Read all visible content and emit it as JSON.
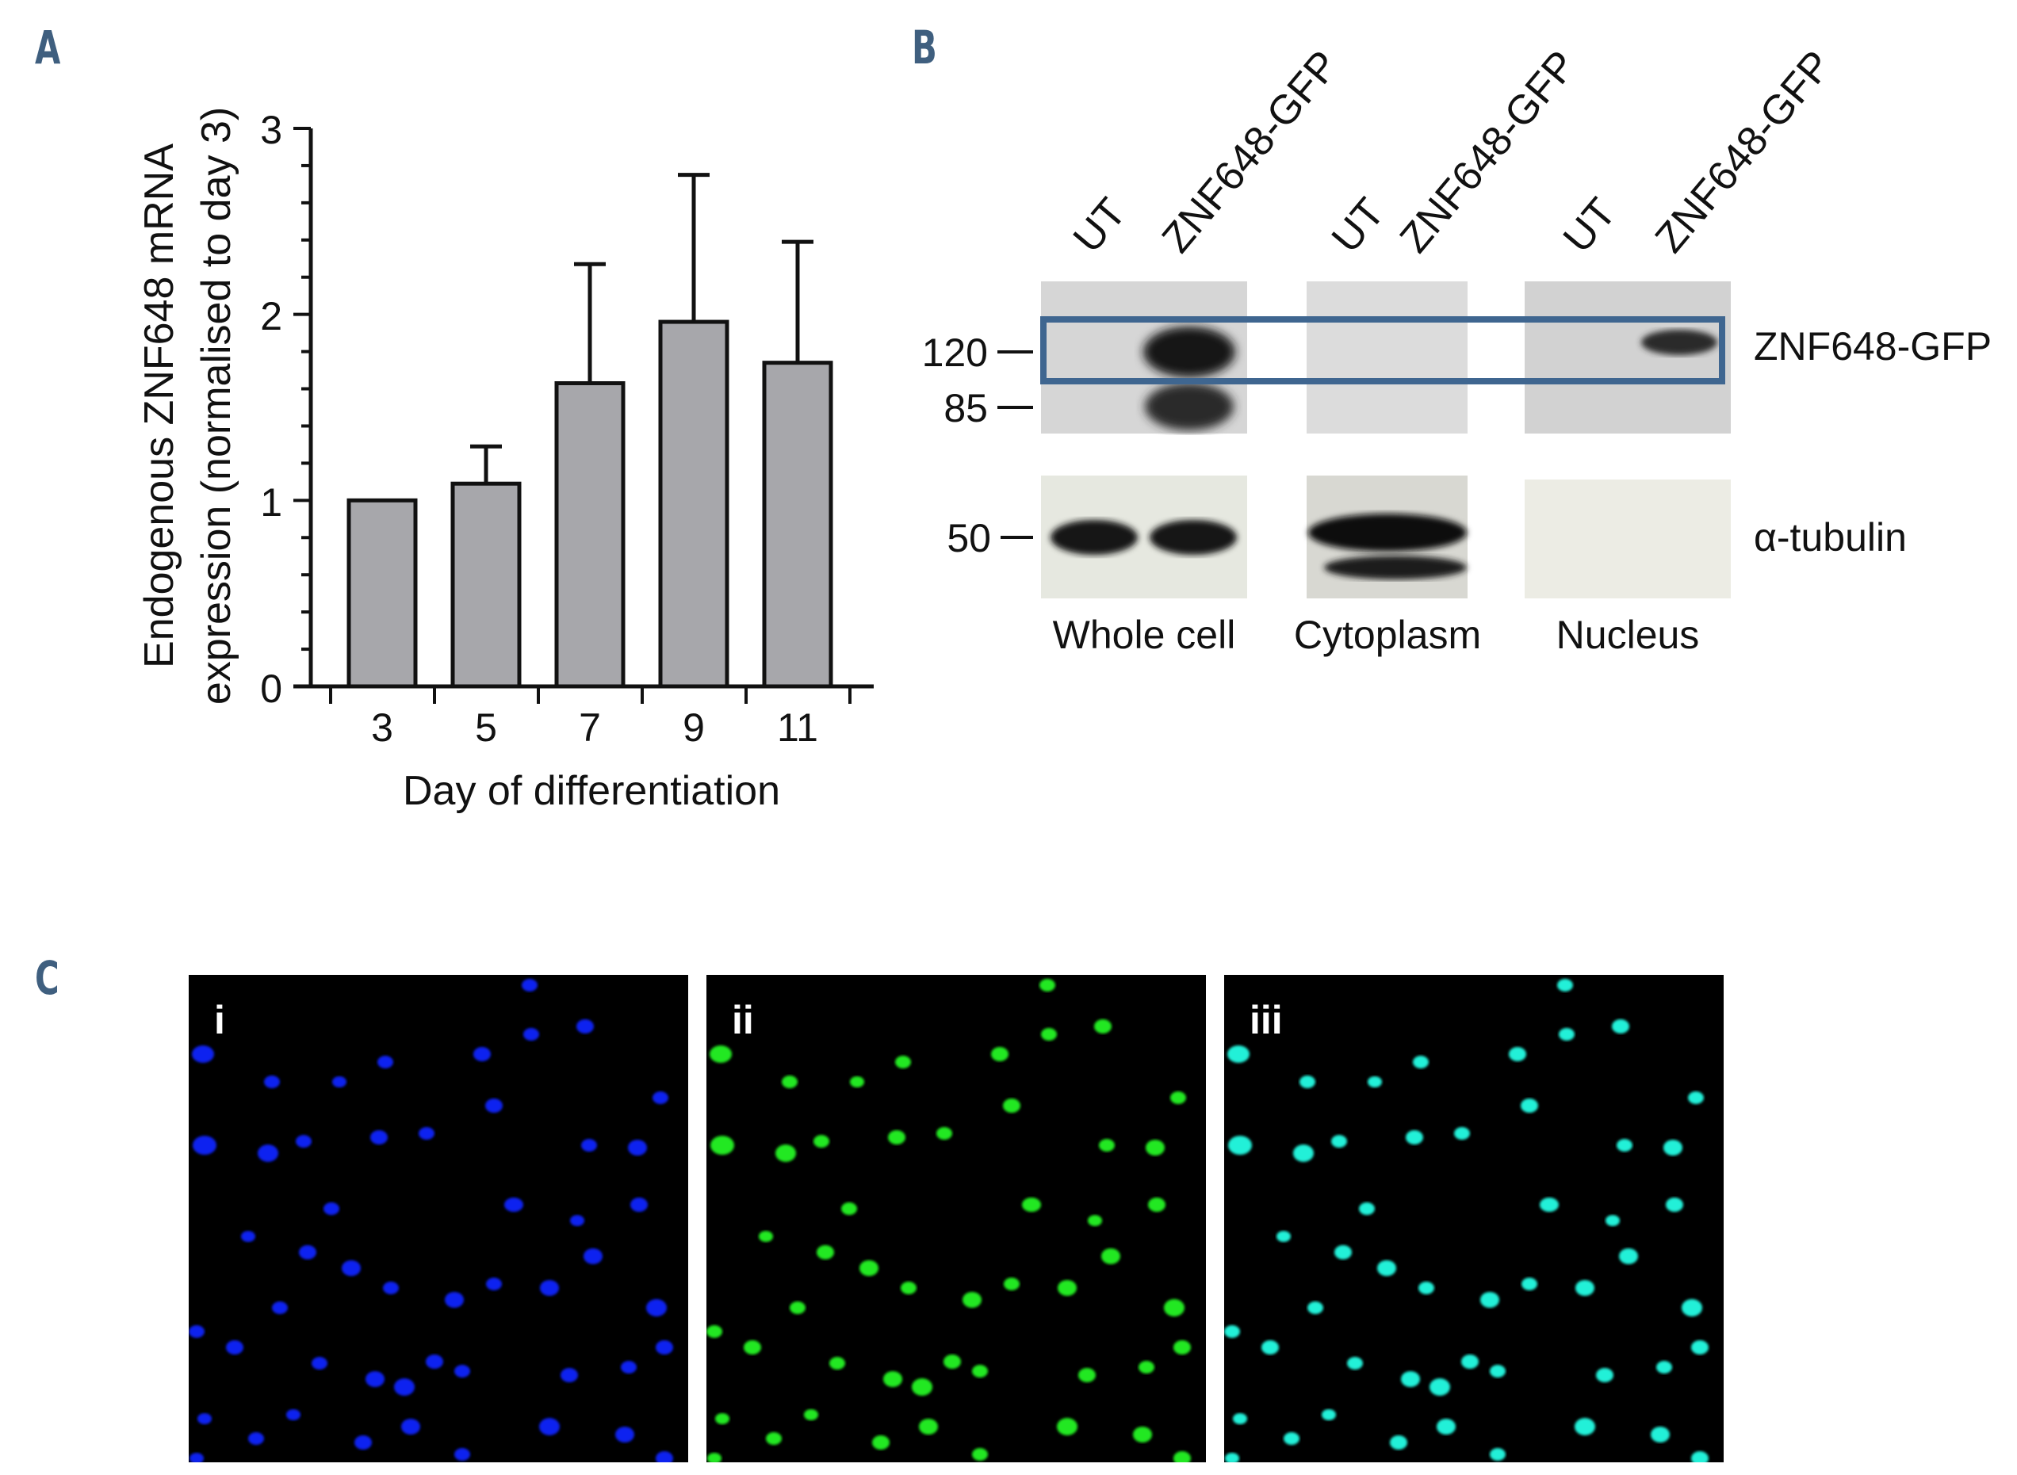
{
  "panels": {
    "a_letter": "A",
    "b_letter": "B",
    "c_letter": "C"
  },
  "chart_data": {
    "type": "bar",
    "categories": [
      "3",
      "5",
      "7",
      "9",
      "11"
    ],
    "values": [
      1.0,
      1.09,
      1.63,
      1.96,
      1.74
    ],
    "error_upper": [
      0.0,
      0.2,
      0.64,
      0.79,
      0.65
    ],
    "ylim": [
      0,
      3
    ],
    "yticks": [
      "0",
      "1",
      "2",
      "3"
    ],
    "xlabel": "Day of differentiation",
    "ylabel_line1": "Endogenous ZNF648 mRNA",
    "ylabel_line2": "expression (normalised to day 3)",
    "bar_color": "#a7a7ab",
    "grid": false
  },
  "blot": {
    "lanes": [
      "UT",
      "ZNF648-GFP",
      "UT",
      "ZNF648-GFP",
      "UT",
      "ZNF648-GFP"
    ],
    "markers": [
      "120",
      "85",
      "50"
    ],
    "targets": [
      "ZNF648-GFP",
      "α-tubulin"
    ],
    "fractions": [
      "Whole cell",
      "Cytoplasm",
      "Nucleus"
    ],
    "highlight_color": "#3f6690"
  },
  "microscopy": {
    "labels": [
      "i",
      "ii",
      "iii"
    ],
    "colors": [
      "#1020f0",
      "#22e822",
      "#22f0d8"
    ]
  }
}
